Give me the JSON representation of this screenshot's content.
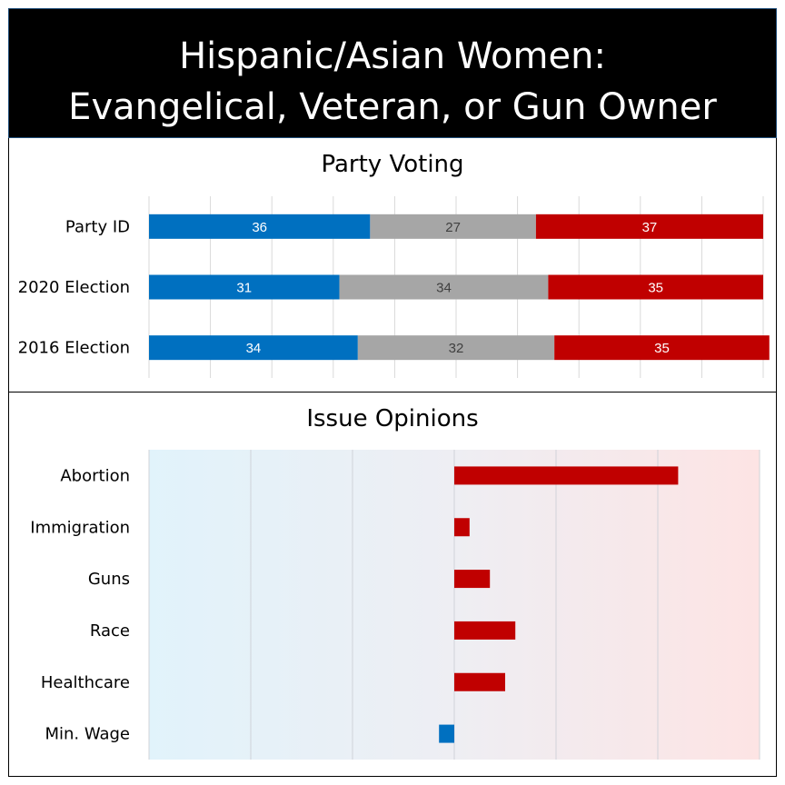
{
  "title": {
    "line1": "Hispanic/Asian Women:",
    "line2": "Evangelical, Veteran, or Gun Owner"
  },
  "colors": {
    "dem": "#0070c0",
    "ind": "#a6a6a6",
    "rep": "#c00000",
    "bg_left": "#e1f3fb",
    "bg_right": "#fde4e4"
  },
  "chart_data": [
    {
      "type": "bar",
      "stacked": true,
      "orientation": "horizontal",
      "title": "Party Voting",
      "categories": [
        "Party ID",
        "2020 Election",
        "2016 Election"
      ],
      "series": [
        {
          "values": [
            36,
            31,
            34
          ],
          "color": "#0070c0"
        },
        {
          "values": [
            27,
            34,
            32
          ],
          "color": "#a6a6a6"
        },
        {
          "values": [
            37,
            35,
            35
          ],
          "color": "#c00000"
        }
      ],
      "xlim": [
        0,
        100
      ],
      "grid": true
    },
    {
      "type": "bar",
      "orientation": "horizontal",
      "title": "Issue Opinions",
      "categories": [
        "Abortion",
        "Immigration",
        "Guns",
        "Race",
        "Healthcare",
        "Min. Wage"
      ],
      "values": [
        0.44,
        0.03,
        0.07,
        0.12,
        0.1,
        -0.03
      ],
      "xlim": [
        -0.6,
        0.6
      ],
      "grid": true
    }
  ]
}
